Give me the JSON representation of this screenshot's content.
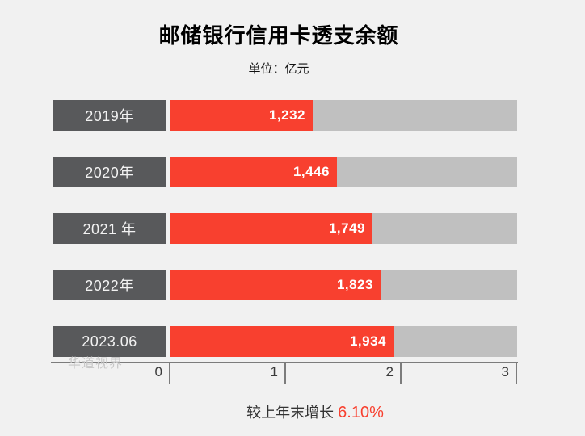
{
  "title": "邮储银行信用卡透支余额",
  "subtitle": "单位：亿元",
  "chart_data": {
    "type": "bar",
    "orientation": "horizontal",
    "title": "邮储银行信用卡透支余额",
    "unit_label": "单位：亿元",
    "categories": [
      "2019年",
      "2020年",
      "2021 年",
      "2022年",
      "2023.06"
    ],
    "values": [
      1232,
      1446,
      1749,
      1823,
      1934
    ],
    "value_labels": [
      "1,232",
      "1,446",
      "1,749",
      "1,823",
      "1,934"
    ],
    "axis_tick_labels": [
      "0",
      "1",
      "2",
      "3"
    ],
    "axis_range_values": [
      0,
      3000
    ],
    "grid": false,
    "legend": false,
    "colors": {
      "bar_fill": "#f8402f",
      "bar_track": "#c0c0c0",
      "category_box": "#58595b",
      "axis": "#7c7c7c",
      "background": "#f1f1f1",
      "value_text": "#ffffff",
      "category_text": "#f2f2f2"
    }
  },
  "footer": {
    "prefix": "较上年末增长 ",
    "value": "6.10%",
    "value_color": "#f8402f"
  },
  "watermark": "华道视界"
}
